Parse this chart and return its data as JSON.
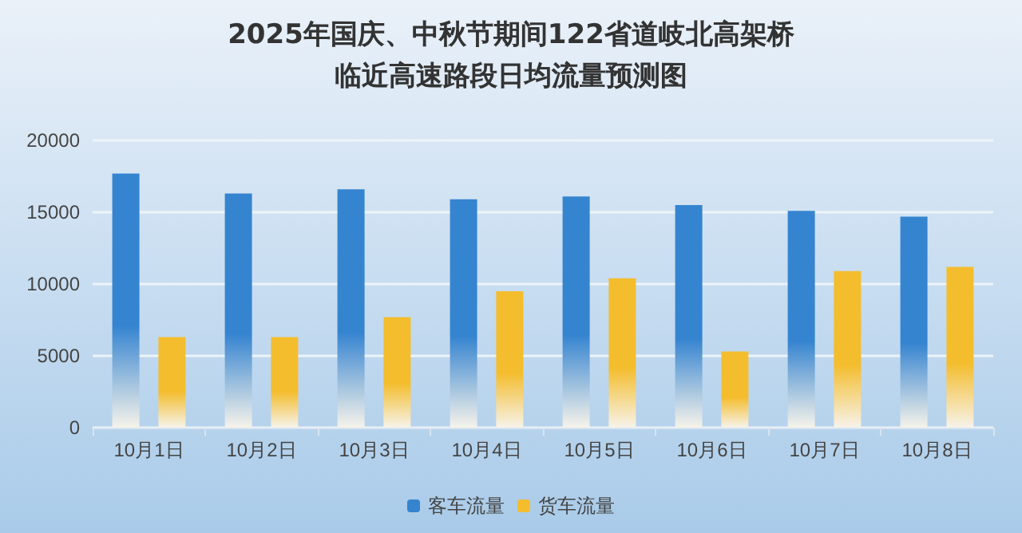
{
  "chart_data": {
    "type": "bar",
    "title": "2025年国庆、中秋节期间122省道岐北高架桥",
    "subtitle": "临近高速路段日均流量预测图",
    "categories": [
      "10月1日",
      "10月2日",
      "10月3日",
      "10月4日",
      "10月5日",
      "10月6日",
      "10月7日",
      "10月8日"
    ],
    "series": [
      {
        "name": "客车流量",
        "color": "#3584d0",
        "values": [
          17700,
          16300,
          16600,
          15900,
          16100,
          15500,
          15100,
          14700
        ]
      },
      {
        "name": "货车流量",
        "color": "#f4bd2e",
        "values": [
          6300,
          6300,
          7700,
          9500,
          10400,
          5300,
          10900,
          11200
        ]
      }
    ],
    "ylim": [
      0,
      20000
    ],
    "yticks": [
      0,
      5000,
      10000,
      15000,
      20000
    ],
    "grid": "y",
    "legend": "bottom"
  }
}
